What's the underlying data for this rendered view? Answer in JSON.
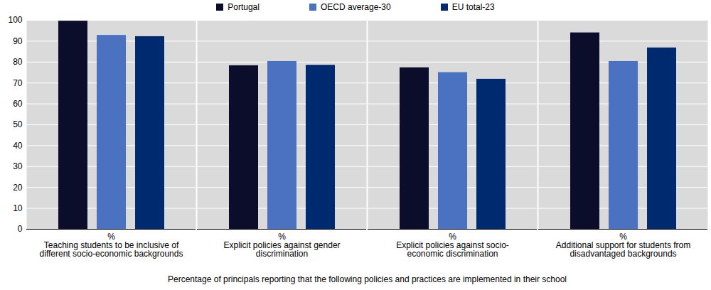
{
  "chart_data": {
    "type": "bar",
    "categories": [
      "%\nTeaching students to be inclusive of\ndifferent socio-economic backgrounds",
      "%\nExplicit policies against gender\ndiscrimination",
      "%\nExplicit policies against socio-\neconomic discrimination",
      "%\nAdditional support for students from\ndisadvantaged backgrounds"
    ],
    "x_label": "Percentage of principals reporting that the following policies and practices are implemented in their school",
    "series": [
      {
        "name": "Portugal",
        "color": "#0b0d2a",
        "values": [
          99.6,
          78.3,
          77.3,
          94.0
        ]
      },
      {
        "name": "OECD average-30",
        "color": "#4a72c0",
        "values": [
          92.8,
          80.3,
          75.0,
          80.3
        ]
      },
      {
        "name": "EU total-23",
        "color": "#002a70",
        "values": [
          92.2,
          78.5,
          71.8,
          86.8
        ]
      }
    ],
    "ylim": [
      0,
      100
    ],
    "yticks": [
      0,
      10,
      20,
      30,
      40,
      50,
      60,
      70,
      80,
      90,
      100
    ],
    "grid": true,
    "legend": "top"
  }
}
